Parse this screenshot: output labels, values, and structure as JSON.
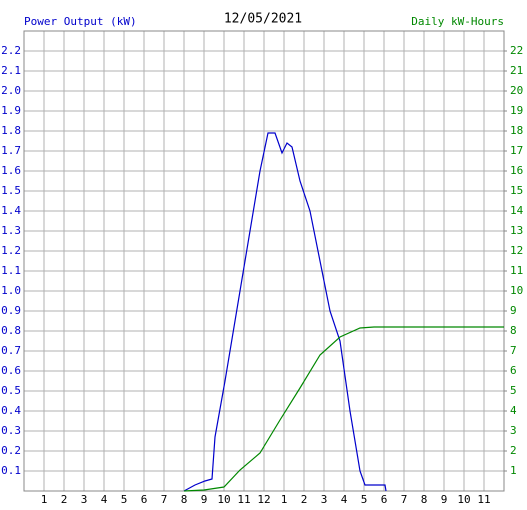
{
  "chart_data": {
    "type": "line",
    "title": "12/05/2021",
    "xlim": [
      0,
      24
    ],
    "xticks": [
      1,
      2,
      3,
      4,
      5,
      6,
      7,
      8,
      9,
      10,
      11,
      12,
      {
        "value": 13,
        "label": "1"
      },
      {
        "value": 14,
        "label": "2"
      },
      {
        "value": 15,
        "label": "3"
      },
      {
        "value": 16,
        "label": "4"
      },
      {
        "value": 17,
        "label": "5"
      },
      {
        "value": 18,
        "label": "6"
      },
      {
        "value": 19,
        "label": "7"
      },
      {
        "value": 20,
        "label": "8"
      },
      {
        "value": 21,
        "label": "9"
      },
      {
        "value": 22,
        "label": "10"
      },
      {
        "value": 23,
        "label": "11"
      }
    ],
    "ylim": [
      0,
      2.3
    ],
    "yticks": [
      0.1,
      0.2,
      0.3,
      0.4,
      0.5,
      0.6,
      0.7,
      0.8,
      0.9,
      {
        "value": 1,
        "label": "1.0"
      },
      1.1,
      1.2,
      1.3,
      1.4,
      1.5,
      1.6,
      1.7,
      1.8,
      1.9,
      {
        "value": 2,
        "label": "2.0"
      },
      2.1,
      2.2
    ],
    "y2lim": [
      0,
      23
    ],
    "y2ticks": [
      1,
      2,
      3,
      4,
      5,
      6,
      7,
      8,
      9,
      10,
      11,
      12,
      13,
      14,
      15,
      16,
      17,
      18,
      19,
      20,
      21,
      22
    ],
    "grid": true,
    "series": [
      {
        "name": "Power Output (kW)",
        "color": "#0000cc",
        "x": [
          8,
          8.55,
          9.05,
          9.4,
          9.55,
          10.05,
          10.8,
          11.3,
          11.8,
          12.2,
          12.55,
          12.9,
          13.15,
          13.4,
          13.8,
          14.3,
          14.8,
          15.3,
          15.8,
          16.3,
          16.8,
          17.05,
          18.05,
          18.1
        ],
        "values": [
          0,
          0.03,
          0.05,
          0.06,
          0.27,
          0.55,
          1.0,
          1.3,
          1.6,
          1.79,
          1.79,
          1.69,
          1.74,
          1.72,
          1.55,
          1.4,
          1.15,
          0.9,
          0.75,
          0.4,
          0.1,
          0.03,
          0.03,
          0
        ]
      },
      {
        "name": "Daily kW-Hours",
        "color": "#008800",
        "axis": "y2",
        "x": [
          8,
          9,
          10,
          10.8,
          11.8,
          12.8,
          13.8,
          14.8,
          15.8,
          16.8,
          17.5,
          24
        ],
        "values": [
          0,
          0.05,
          0.2,
          1.05,
          1.9,
          3.55,
          5.15,
          6.8,
          7.7,
          8.15,
          8.2,
          8.2
        ]
      }
    ]
  }
}
